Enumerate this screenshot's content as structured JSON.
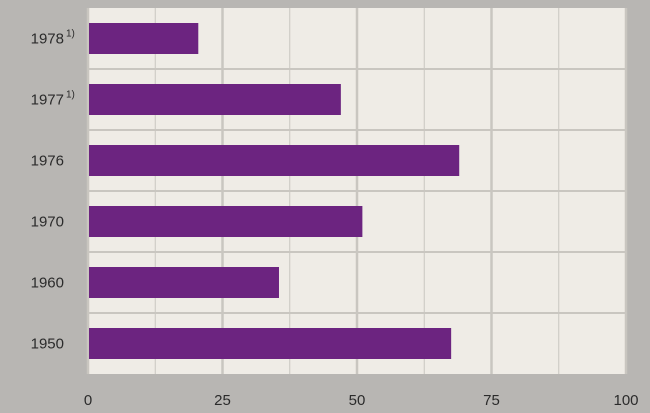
{
  "chart_data": {
    "type": "bar",
    "orientation": "horizontal",
    "categories": [
      "1978",
      "1977",
      "1976",
      "1970",
      "1960",
      "1950"
    ],
    "category_footnotes": [
      "1)",
      "1)",
      "",
      "",
      "",
      ""
    ],
    "values": [
      20.5,
      47,
      69,
      51,
      35.5,
      67.5
    ],
    "xlim": [
      0,
      100
    ],
    "xticks": [
      "0",
      "25",
      "50",
      "75",
      "100"
    ],
    "grid": true,
    "title": "",
    "xlabel": "",
    "ylabel": "",
    "colors": {
      "bar": "#6c2480",
      "plot_background": "#efece6",
      "grid": "#c9c6c0",
      "page_background": "#b8b6b3"
    }
  }
}
